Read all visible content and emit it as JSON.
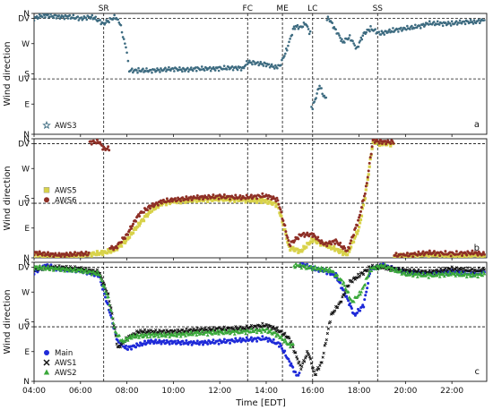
{
  "chart_data": {
    "type": "scatter",
    "xlabel": "Time [EDT]",
    "ylabel": "Wind direction",
    "xlim": [
      4,
      23.5
    ],
    "xticks": [
      4,
      6,
      8,
      10,
      12,
      14,
      16,
      18,
      20,
      22
    ],
    "xtick_labels": [
      "04:00",
      "06:00",
      "08:00",
      "10:00",
      "12:00",
      "14:00",
      "16:00",
      "18:00",
      "20:00",
      "22:00"
    ],
    "yticks_labels": [
      "N",
      "DV",
      "W",
      "S",
      "UV",
      "E",
      "N"
    ],
    "events": [
      {
        "label": "SR",
        "time": 7.0
      },
      {
        "label": "FC",
        "time": 13.2
      },
      {
        "label": "ME",
        "time": 14.7
      },
      {
        "label": "LC",
        "time": 16.0
      },
      {
        "label": "SS",
        "time": 18.8
      }
    ],
    "panels": [
      {
        "letter": "a",
        "legend_position": "lower-left",
        "series": [
          {
            "name": "AWS3",
            "marker": "star",
            "color": "#3d6b80",
            "points": [
              [
                4.0,
                345
              ],
              [
                4.4,
                355
              ],
              [
                5.0,
                350
              ],
              [
                5.5,
                350
              ],
              [
                6.0,
                345
              ],
              [
                6.5,
                350
              ],
              [
                7.0,
                330
              ],
              [
                7.5,
                350
              ],
              [
                7.7,
                330
              ],
              [
                8.0,
                245
              ],
              [
                8.1,
                190
              ],
              [
                8.5,
                190
              ],
              [
                9.0,
                190
              ],
              [
                9.5,
                192
              ],
              [
                10.0,
                195
              ],
              [
                10.5,
                192
              ],
              [
                11.0,
                195
              ],
              [
                11.5,
                195
              ],
              [
                12.0,
                196
              ],
              [
                12.5,
                198
              ],
              [
                13.0,
                197
              ],
              [
                13.2,
                215
              ],
              [
                13.6,
                212
              ],
              [
                14.0,
                208
              ],
              [
                14.4,
                200
              ],
              [
                14.6,
                205
              ],
              [
                14.9,
                255
              ],
              [
                15.2,
                320
              ],
              [
                15.5,
                320
              ],
              [
                15.7,
                330
              ],
              [
                15.9,
                300
              ],
              [
                16.0,
                80
              ],
              [
                16.3,
                145
              ],
              [
                16.5,
                110
              ],
              [
                16.7,
                345
              ],
              [
                17.0,
                310
              ],
              [
                17.3,
                275
              ],
              [
                17.6,
                290
              ],
              [
                17.9,
                255
              ],
              [
                18.2,
                300
              ],
              [
                18.5,
                315
              ],
              [
                18.9,
                300
              ],
              [
                19.2,
                305
              ],
              [
                19.5,
                310
              ],
              [
                20.0,
                315
              ],
              [
                20.5,
                320
              ],
              [
                21.0,
                330
              ],
              [
                21.5,
                330
              ],
              [
                22.0,
                330
              ],
              [
                22.5,
                335
              ],
              [
                23.0,
                335
              ],
              [
                23.4,
                340
              ]
            ]
          }
        ]
      },
      {
        "letter": "b",
        "legend_position": "mid-left",
        "series": [
          {
            "name": "AWS5",
            "marker": "square",
            "color": "#d8d24a",
            "points": [
              [
                4.0,
                10
              ],
              [
                5.0,
                5
              ],
              [
                6.0,
                8
              ],
              [
                7.0,
                15
              ],
              [
                7.5,
                25
              ],
              [
                8.0,
                55
              ],
              [
                8.5,
                100
              ],
              [
                9.0,
                140
              ],
              [
                9.5,
                165
              ],
              [
                10.0,
                170
              ],
              [
                11.0,
                175
              ],
              [
                12.0,
                178
              ],
              [
                13.0,
                175
              ],
              [
                14.0,
                172
              ],
              [
                14.5,
                160
              ],
              [
                15.0,
                30
              ],
              [
                15.5,
                20
              ],
              [
                16.0,
                55
              ],
              [
                16.5,
                40
              ],
              [
                17.0,
                25
              ],
              [
                17.5,
                10
              ],
              [
                18.0,
                90
              ],
              [
                18.3,
                200
              ],
              [
                18.6,
                350
              ],
              [
                19.0,
                345
              ],
              [
                20.0,
                5
              ],
              [
                21.0,
                10
              ],
              [
                22.0,
                5
              ],
              [
                23.0,
                8
              ],
              [
                23.4,
                5
              ]
            ]
          },
          {
            "name": "AWS6",
            "marker": "circle",
            "color": "#8e2f26",
            "points": [
              [
                4.0,
                15
              ],
              [
                5.0,
                8
              ],
              [
                6.0,
                12
              ],
              [
                6.8,
                350
              ],
              [
                7.0,
                330
              ],
              [
                7.5,
                30
              ],
              [
                8.0,
                70
              ],
              [
                8.5,
                130
              ],
              [
                9.0,
                155
              ],
              [
                9.5,
                170
              ],
              [
                10.0,
                175
              ],
              [
                11.0,
                182
              ],
              [
                12.0,
                185
              ],
              [
                13.0,
                182
              ],
              [
                14.0,
                188
              ],
              [
                14.5,
                175
              ],
              [
                15.0,
                40
              ],
              [
                15.5,
                70
              ],
              [
                16.0,
                70
              ],
              [
                16.5,
                40
              ],
              [
                17.0,
                50
              ],
              [
                17.5,
                20
              ],
              [
                18.0,
                120
              ],
              [
                18.3,
                210
              ],
              [
                18.6,
                355
              ],
              [
                19.0,
                350
              ],
              [
                20.0,
                8
              ],
              [
                21.0,
                15
              ],
              [
                22.0,
                12
              ],
              [
                23.0,
                15
              ],
              [
                23.4,
                10
              ]
            ]
          }
        ]
      },
      {
        "letter": "c",
        "legend_position": "lower-left",
        "series": [
          {
            "name": "Main",
            "marker": "circle",
            "color": "#1f2ad8",
            "points": [
              [
                4.0,
                330
              ],
              [
                4.5,
                350
              ],
              [
                5.0,
                340
              ],
              [
                6.0,
                335
              ],
              [
                6.8,
                320
              ],
              [
                7.3,
                200
              ],
              [
                7.6,
                120
              ],
              [
                8.0,
                100
              ],
              [
                8.5,
                110
              ],
              [
                9.0,
                120
              ],
              [
                10.0,
                118
              ],
              [
                11.0,
                116
              ],
              [
                12.0,
                120
              ],
              [
                13.0,
                125
              ],
              [
                14.0,
                130
              ],
              [
                14.6,
                110
              ],
              [
                15.0,
                60
              ],
              [
                15.3,
                20
              ],
              [
                15.6,
                355
              ],
              [
                16.0,
                340
              ],
              [
                16.5,
                335
              ],
              [
                17.0,
                320
              ],
              [
                17.5,
                250
              ],
              [
                17.8,
                200
              ],
              [
                18.2,
                230
              ],
              [
                18.5,
                340
              ],
              [
                19.0,
                350
              ],
              [
                20.0,
                330
              ],
              [
                21.0,
                325
              ],
              [
                22.0,
                330
              ],
              [
                23.0,
                325
              ],
              [
                23.4,
                330
              ]
            ]
          },
          {
            "name": "AWS1",
            "marker": "x",
            "color": "#111111",
            "points": [
              [
                4.0,
                340
              ],
              [
                5.0,
                345
              ],
              [
                6.0,
                340
              ],
              [
                6.8,
                330
              ],
              [
                7.2,
                260
              ],
              [
                7.4,
                190
              ],
              [
                7.6,
                100
              ],
              [
                8.0,
                130
              ],
              [
                8.5,
                150
              ],
              [
                9.0,
                150
              ],
              [
                10.0,
                150
              ],
              [
                11.0,
                155
              ],
              [
                12.0,
                158
              ],
              [
                13.0,
                160
              ],
              [
                14.0,
                170
              ],
              [
                14.5,
                155
              ],
              [
                15.0,
                130
              ],
              [
                15.5,
                40
              ],
              [
                15.8,
                90
              ],
              [
                16.1,
                20
              ],
              [
                16.4,
                60
              ],
              [
                16.8,
                200
              ],
              [
                17.2,
                240
              ],
              [
                17.6,
                300
              ],
              [
                18.0,
                320
              ],
              [
                18.5,
                345
              ],
              [
                19.0,
                345
              ],
              [
                20.0,
                335
              ],
              [
                21.0,
                330
              ],
              [
                22.0,
                340
              ],
              [
                23.0,
                335
              ],
              [
                23.4,
                338
              ]
            ]
          },
          {
            "name": "AWS2",
            "marker": "triangle",
            "color": "#3aa83a",
            "points": [
              [
                4.0,
                345
              ],
              [
                5.0,
                340
              ],
              [
                6.0,
                335
              ],
              [
                6.8,
                325
              ],
              [
                7.2,
                250
              ],
              [
                7.5,
                150
              ],
              [
                7.8,
                120
              ],
              [
                8.2,
                135
              ],
              [
                9.0,
                140
              ],
              [
                10.0,
                140
              ],
              [
                11.0,
                145
              ],
              [
                12.0,
                148
              ],
              [
                13.0,
                150
              ],
              [
                14.0,
                155
              ],
              [
                14.5,
                140
              ],
              [
                15.0,
                110
              ],
              [
                15.4,
                350
              ],
              [
                15.8,
                345
              ],
              [
                16.3,
                340
              ],
              [
                16.8,
                335
              ],
              [
                17.3,
                300
              ],
              [
                17.7,
                240
              ],
              [
                18.1,
                270
              ],
              [
                18.5,
                340
              ],
              [
                19.0,
                350
              ],
              [
                20.0,
                325
              ],
              [
                21.0,
                320
              ],
              [
                22.0,
                325
              ],
              [
                23.0,
                320
              ],
              [
                23.4,
                325
              ]
            ]
          }
        ]
      }
    ]
  }
}
